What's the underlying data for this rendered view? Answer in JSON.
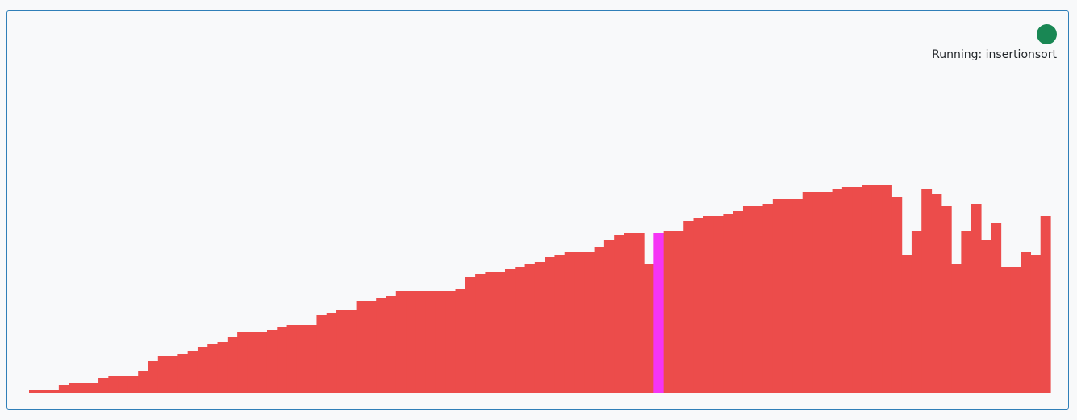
{
  "status": {
    "label": "Running: insertionsort",
    "indicator_color": "#198754"
  },
  "colors": {
    "bar": "#ec4c4b",
    "highlight": "#f534f5"
  },
  "chart_data": {
    "type": "bar",
    "highlight_index": 63,
    "values": [
      1,
      1,
      1,
      3,
      4,
      4,
      4,
      6,
      7,
      7,
      7,
      9,
      13,
      15,
      15,
      16,
      17,
      19,
      20,
      21,
      23,
      25,
      25,
      25,
      26,
      27,
      28,
      28,
      28,
      32,
      33,
      34,
      34,
      38,
      38,
      39,
      40,
      42,
      42,
      42,
      42,
      42,
      42,
      43,
      48,
      49,
      50,
      50,
      51,
      52,
      53,
      54,
      56,
      57,
      58,
      58,
      58,
      60,
      63,
      65,
      66,
      66,
      53,
      66,
      67,
      67,
      71,
      72,
      73,
      73,
      74,
      75,
      77,
      77,
      78,
      80,
      80,
      80,
      83,
      83,
      83,
      84,
      85,
      85,
      86,
      86,
      86,
      81,
      57,
      67,
      84,
      82,
      77,
      53,
      67,
      78,
      63,
      70,
      52,
      52,
      58,
      57,
      73
    ]
  }
}
